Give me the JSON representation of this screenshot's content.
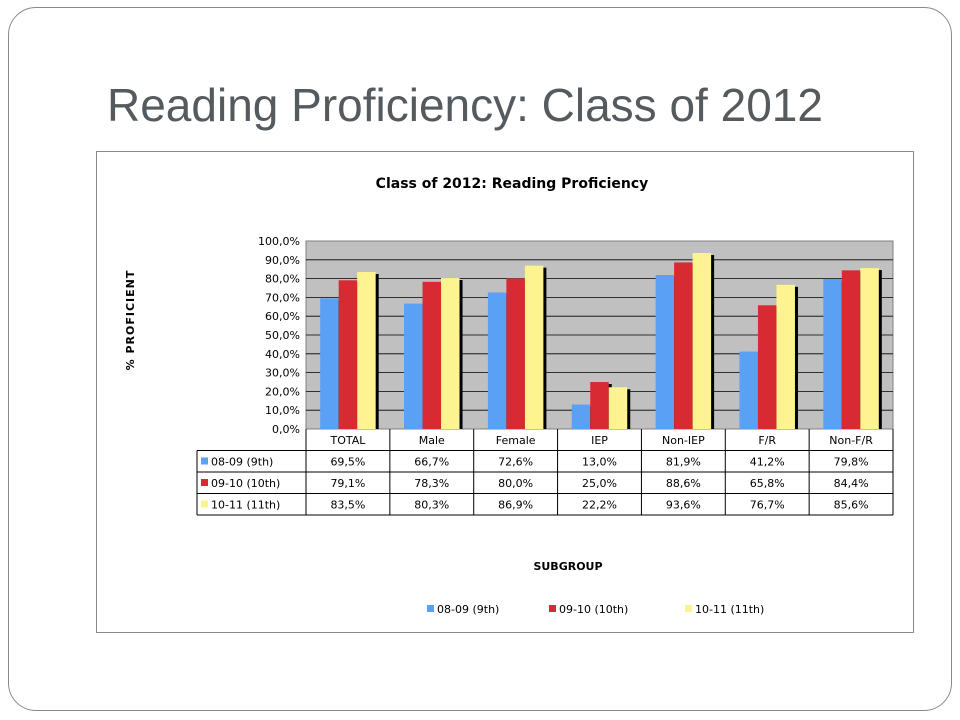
{
  "slide": {
    "title": "Reading Proficiency:  Class of 2012"
  },
  "chart_data": {
    "type": "bar",
    "title": "Class of 2012:  Reading Proficiency",
    "xlabel": "SUBGROUP",
    "ylabel": "% PROFICIENT",
    "ylim": [
      0,
      100
    ],
    "yticks": [
      "0,0%",
      "10,0%",
      "20,0%",
      "30,0%",
      "40,0%",
      "50,0%",
      "60,0%",
      "70,0%",
      "80,0%",
      "90,0%",
      "100,0%"
    ],
    "categories": [
      "TOTAL",
      "Male",
      "Female",
      "IEP",
      "Non-IEP",
      "F/R",
      "Non-F/R"
    ],
    "series": [
      {
        "name": "08-09 (9th)",
        "color": "#5aa0f5",
        "values": [
          69.5,
          66.7,
          72.6,
          13.0,
          81.9,
          41.2,
          79.8
        ],
        "labels": [
          "69,5%",
          "66,7%",
          "72,6%",
          "13,0%",
          "81,9%",
          "41,2%",
          "79,8%"
        ]
      },
      {
        "name": "09-10 (10th)",
        "color": "#d82a33",
        "values": [
          79.1,
          78.3,
          80.0,
          25.0,
          88.6,
          65.8,
          84.4
        ],
        "labels": [
          "79,1%",
          "78,3%",
          "80,0%",
          "25,0%",
          "88,6%",
          "65,8%",
          "84,4%"
        ]
      },
      {
        "name": "10-11 (11th)",
        "color": "#fdf391",
        "values": [
          83.5,
          80.3,
          86.9,
          22.2,
          93.6,
          76.7,
          85.6
        ],
        "labels": [
          "83,5%",
          "80,3%",
          "86,9%",
          "22,2%",
          "93,6%",
          "76,7%",
          "85,6%"
        ]
      }
    ],
    "grid": true,
    "legend": "bottom",
    "data_table": true
  }
}
